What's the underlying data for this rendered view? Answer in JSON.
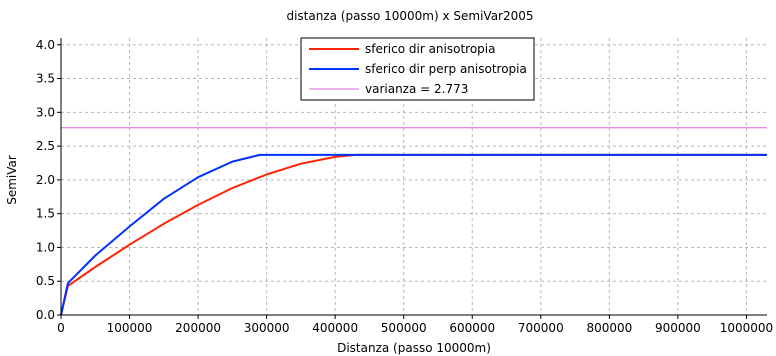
{
  "chart_data": {
    "type": "line",
    "title": "distanza (passo 10000m) x SemiVar2005",
    "xlabel": "Distanza (passo 10000m)",
    "ylabel": "SemiVar",
    "xlim": [
      0,
      1030000
    ],
    "ylim": [
      0,
      4.1
    ],
    "xticks": [
      0,
      100000,
      200000,
      300000,
      400000,
      500000,
      600000,
      700000,
      800000,
      900000,
      1000000
    ],
    "xtick_labels": [
      "0",
      "100000",
      "200000",
      "300000",
      "400000",
      "500000",
      "600000",
      "700000",
      "800000",
      "900000",
      "1000000"
    ],
    "yticks": [
      0.0,
      0.5,
      1.0,
      1.5,
      2.0,
      2.5,
      3.0,
      3.5,
      4.0
    ],
    "ytick_labels": [
      "0.0",
      "0.5",
      "1.0",
      "1.5",
      "2.0",
      "2.5",
      "3.0",
      "3.5",
      "4.0"
    ],
    "grid": true,
    "legend_position": "top-center",
    "model": {
      "nugget": 0.4,
      "sill": 2.37
    },
    "series": [
      {
        "name": "sferico dir anisotropia",
        "color": "#ff2200",
        "range": 430000,
        "x": [
          0,
          10000,
          50000,
          100000,
          150000,
          200000,
          250000,
          300000,
          350000,
          400000,
          430000,
          1030000
        ],
        "y": [
          0,
          0.43,
          0.71,
          1.04,
          1.35,
          1.63,
          1.88,
          2.08,
          2.24,
          2.34,
          2.37,
          2.37
        ]
      },
      {
        "name": "sferico dir perp anisotropia",
        "color": "#0033ff",
        "range": 290000,
        "x": [
          0,
          10000,
          50000,
          100000,
          150000,
          200000,
          250000,
          290000,
          1030000
        ],
        "y": [
          0,
          0.47,
          0.88,
          1.31,
          1.72,
          2.04,
          2.27,
          2.37,
          2.37
        ]
      },
      {
        "name": "varianza = 2.773",
        "color": "#dd66dd",
        "x": [
          0,
          1030000
        ],
        "y": [
          2.773,
          2.773
        ]
      }
    ]
  }
}
